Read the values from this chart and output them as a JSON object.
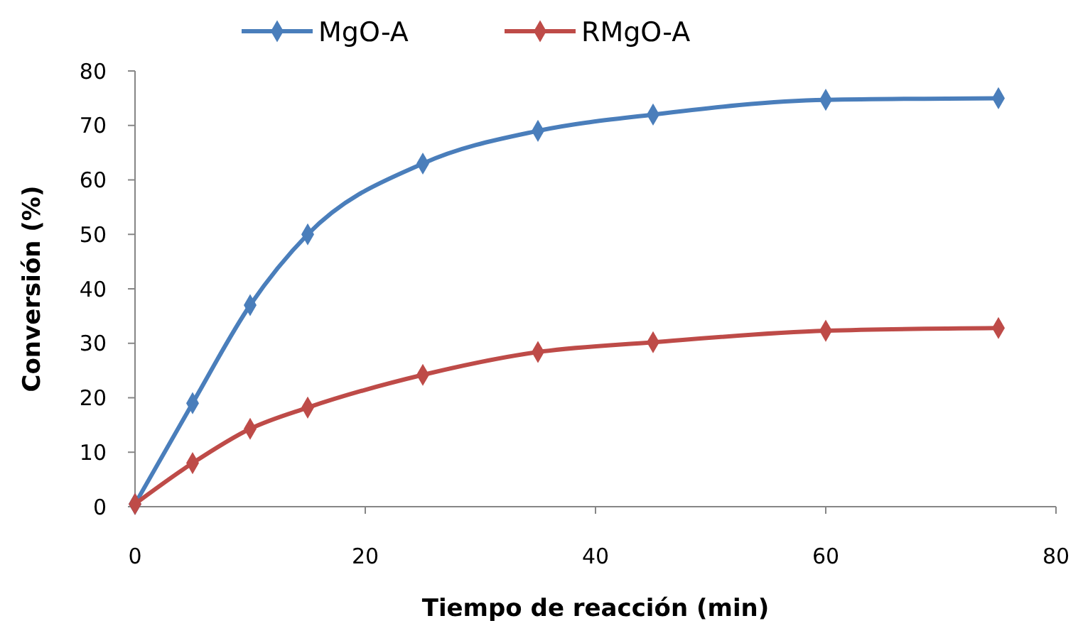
{
  "chart_data": {
    "type": "line",
    "xlabel": "Tiempo de reacción (min)",
    "ylabel": "Conversión (%)",
    "xlim": [
      0,
      80
    ],
    "xticks": [
      0,
      20,
      40,
      60,
      80
    ],
    "ylim": [
      0,
      80
    ],
    "yticks": [
      0,
      10,
      20,
      30,
      40,
      50,
      60,
      70,
      80
    ],
    "x": [
      0,
      5,
      10,
      15,
      25,
      35,
      45,
      60,
      75
    ],
    "series": [
      {
        "name": "MgO-A",
        "color": "#4a7ebb",
        "values": [
          0.5,
          19,
          37,
          50,
          63,
          69,
          72,
          74.7,
          75
        ]
      },
      {
        "name": "RMgO-A",
        "color": "#be4b48",
        "values": [
          0.5,
          8,
          14.3,
          18.2,
          24.2,
          28.4,
          30.2,
          32.3,
          32.8
        ]
      }
    ],
    "legend": "top",
    "marker": "diamond",
    "line_style": "solid",
    "grid": false
  }
}
